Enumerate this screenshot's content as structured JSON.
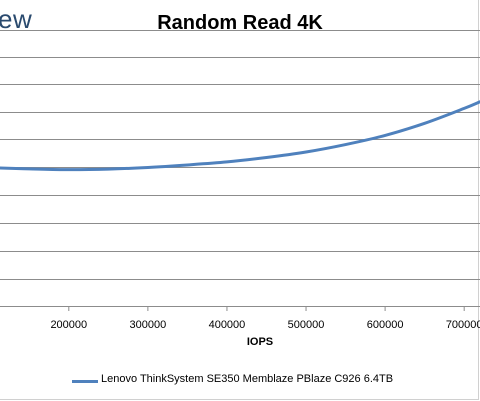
{
  "watermark": "ew",
  "chart_data": {
    "type": "line",
    "title": "Random Read 4K",
    "xlabel": "IOPS",
    "ylabel": "",
    "x_ticks": [
      200000,
      300000,
      400000,
      500000,
      600000,
      700000
    ],
    "x_tick_labels": [
      "200000",
      "300000",
      "400000",
      "500000",
      "600000",
      "700000"
    ],
    "xlim": [
      113000,
      720000
    ],
    "grid": true,
    "legend_position": "bottom",
    "series": [
      {
        "name": "Lenovo ThinkSystem SE350 Memblaze PBlaze C926 6.4TB",
        "color": "#4f81bd",
        "x": [
          113000,
          150000,
          200000,
          250000,
          300000,
          350000,
          400000,
          450000,
          500000,
          550000,
          600000,
          650000,
          700000,
          720000
        ],
        "y": [
          0.5,
          0.497,
          0.494,
          0.496,
          0.502,
          0.511,
          0.522,
          0.538,
          0.558,
          0.585,
          0.618,
          0.662,
          0.716,
          0.74
        ]
      }
    ]
  }
}
